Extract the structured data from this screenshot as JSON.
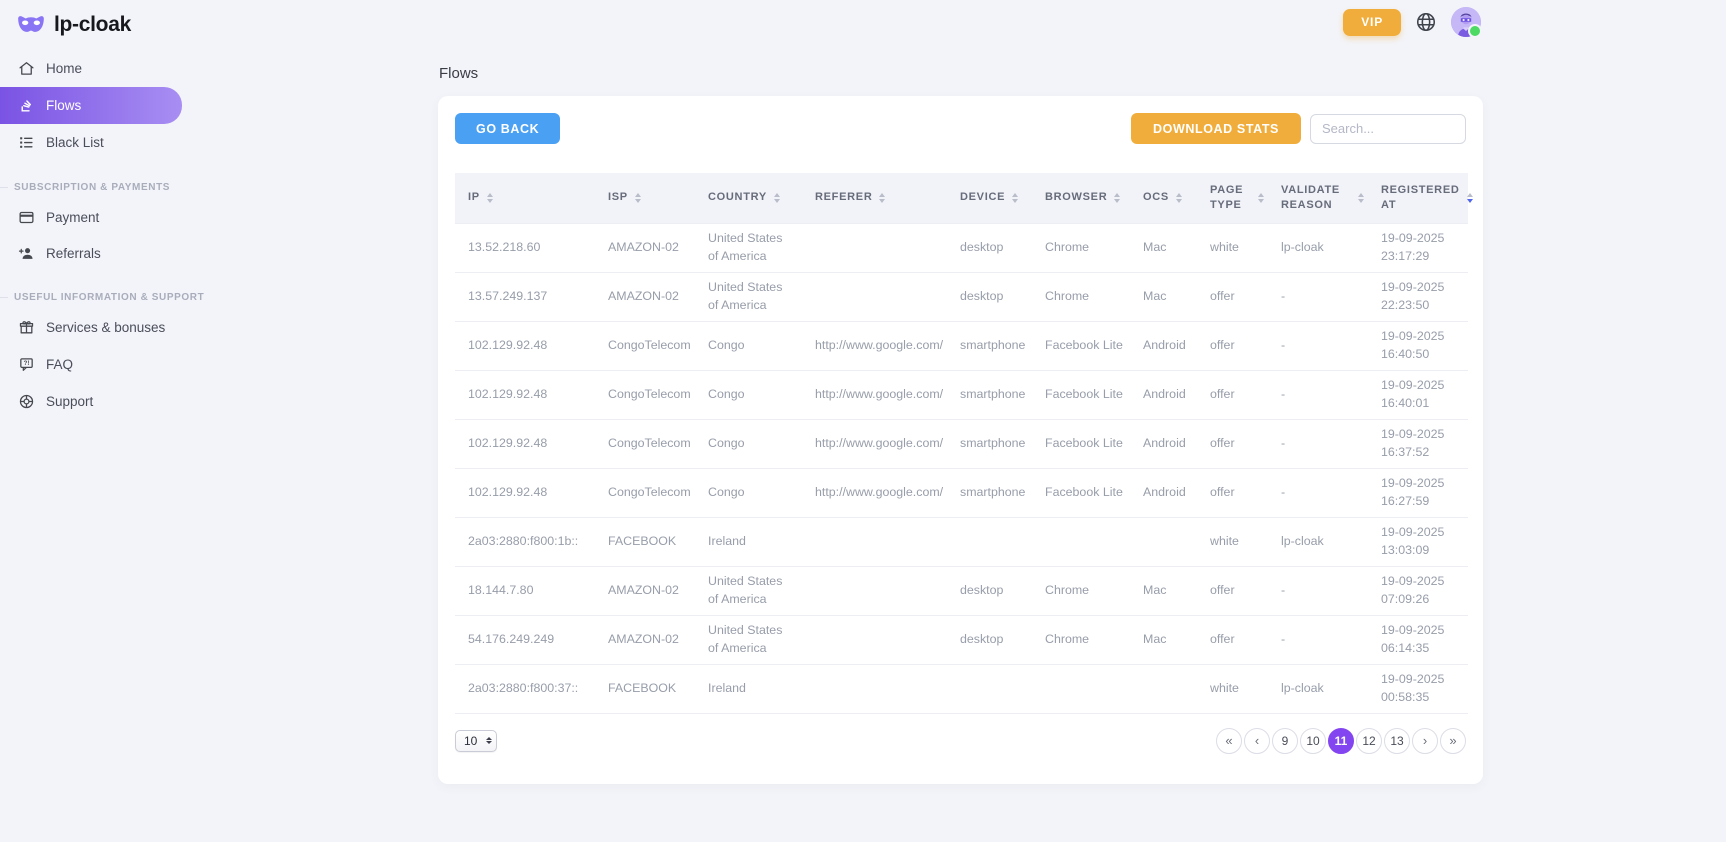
{
  "brand": {
    "name": "lp-cloak"
  },
  "topbar": {
    "vip_label": "VIP"
  },
  "sidebar": {
    "home": "Home",
    "flows": "Flows",
    "blacklist": "Black List",
    "section_payments": "Subscription & payments",
    "payment": "Payment",
    "referrals": "Referrals",
    "section_support": "Useful information & support",
    "services": "Services & bonuses",
    "faq": "FAQ",
    "support": "Support"
  },
  "page": {
    "title": "Flows"
  },
  "toolbar": {
    "go_back": "GO BACK",
    "download_stats": "DOWNLOAD STATS",
    "search_placeholder": "Search..."
  },
  "table": {
    "sorted_by": "registered_at",
    "columns": [
      {
        "key": "ip",
        "label": "IP"
      },
      {
        "key": "isp",
        "label": "ISP"
      },
      {
        "key": "country",
        "label": "Country"
      },
      {
        "key": "referer",
        "label": "Referer"
      },
      {
        "key": "device",
        "label": "Device"
      },
      {
        "key": "browser",
        "label": "Browser"
      },
      {
        "key": "ocs",
        "label": "OCS"
      },
      {
        "key": "page_type",
        "label": "Page type"
      },
      {
        "key": "validate_reason",
        "label": "Validate reason"
      },
      {
        "key": "registered_at",
        "label": "Registered at"
      }
    ],
    "rows": [
      {
        "ip": "13.52.218.60",
        "isp": "AMAZON-02",
        "country": "United States of America",
        "referer": "",
        "device": "desktop",
        "browser": "Chrome",
        "ocs": "Mac",
        "page_type": "white",
        "validate_reason": "lp-cloak",
        "registered_at": "19-09-2025 23:17:29"
      },
      {
        "ip": "13.57.249.137",
        "isp": "AMAZON-02",
        "country": "United States of America",
        "referer": "",
        "device": "desktop",
        "browser": "Chrome",
        "ocs": "Mac",
        "page_type": "offer",
        "validate_reason": "-",
        "registered_at": "19-09-2025 22:23:50"
      },
      {
        "ip": "102.129.92.48",
        "isp": "CongoTelecom",
        "country": "Congo",
        "referer": "http://www.google.com/",
        "device": "smartphone",
        "browser": "Facebook Lite",
        "ocs": "Android",
        "page_type": "offer",
        "validate_reason": "-",
        "registered_at": "19-09-2025 16:40:50"
      },
      {
        "ip": "102.129.92.48",
        "isp": "CongoTelecom",
        "country": "Congo",
        "referer": "http://www.google.com/",
        "device": "smartphone",
        "browser": "Facebook Lite",
        "ocs": "Android",
        "page_type": "offer",
        "validate_reason": "-",
        "registered_at": "19-09-2025 16:40:01"
      },
      {
        "ip": "102.129.92.48",
        "isp": "CongoTelecom",
        "country": "Congo",
        "referer": "http://www.google.com/",
        "device": "smartphone",
        "browser": "Facebook Lite",
        "ocs": "Android",
        "page_type": "offer",
        "validate_reason": "-",
        "registered_at": "19-09-2025 16:37:52"
      },
      {
        "ip": "102.129.92.48",
        "isp": "CongoTelecom",
        "country": "Congo",
        "referer": "http://www.google.com/",
        "device": "smartphone",
        "browser": "Facebook Lite",
        "ocs": "Android",
        "page_type": "offer",
        "validate_reason": "-",
        "registered_at": "19-09-2025 16:27:59"
      },
      {
        "ip": "2a03:2880:f800:1b::",
        "isp": "FACEBOOK",
        "country": "Ireland",
        "referer": "",
        "device": "",
        "browser": "",
        "ocs": "",
        "page_type": "white",
        "validate_reason": "lp-cloak",
        "registered_at": "19-09-2025 13:03:09"
      },
      {
        "ip": "18.144.7.80",
        "isp": "AMAZON-02",
        "country": "United States of America",
        "referer": "",
        "device": "desktop",
        "browser": "Chrome",
        "ocs": "Mac",
        "page_type": "offer",
        "validate_reason": "-",
        "registered_at": "19-09-2025 07:09:26"
      },
      {
        "ip": "54.176.249.249",
        "isp": "AMAZON-02",
        "country": "United States of America",
        "referer": "",
        "device": "desktop",
        "browser": "Chrome",
        "ocs": "Mac",
        "page_type": "offer",
        "validate_reason": "-",
        "registered_at": "19-09-2025 06:14:35"
      },
      {
        "ip": "2a03:2880:f800:37::",
        "isp": "FACEBOOK",
        "country": "Ireland",
        "referer": "",
        "device": "",
        "browser": "",
        "ocs": "",
        "page_type": "white",
        "validate_reason": "lp-cloak",
        "registered_at": "19-09-2025 00:58:35"
      }
    ]
  },
  "pagination": {
    "page_size": "10",
    "first": "«",
    "prev": "‹",
    "next": "›",
    "last": "»",
    "pages": [
      "9",
      "10",
      "11",
      "12",
      "13"
    ],
    "active_page": "11"
  },
  "colors": {
    "background": "#f3f4f9",
    "accent_purple": "#8345f0",
    "sidebar_gradient_from": "#7a53e4",
    "sidebar_gradient_to": "#a88ef3",
    "blue_button": "#4aa0f2",
    "orange_button": "#f1ad3b",
    "online_green": "#4cd964",
    "sorted_arrow_blue": "#5166ee"
  }
}
